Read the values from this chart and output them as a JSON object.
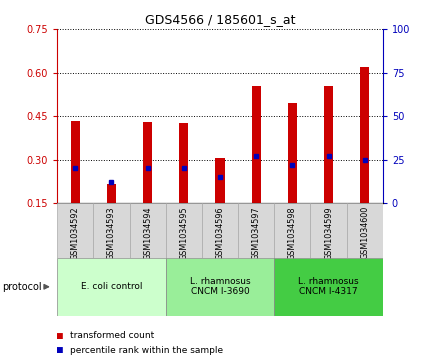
{
  "title": "GDS4566 / 185601_s_at",
  "samples": [
    "GSM1034592",
    "GSM1034593",
    "GSM1034594",
    "GSM1034595",
    "GSM1034596",
    "GSM1034597",
    "GSM1034598",
    "GSM1034599",
    "GSM1034600"
  ],
  "transformed_count": [
    0.435,
    0.215,
    0.43,
    0.425,
    0.305,
    0.555,
    0.495,
    0.555,
    0.62
  ],
  "percentile_rank": [
    20,
    12,
    20,
    20,
    15,
    27,
    22,
    27,
    25
  ],
  "bar_bottom": 0.15,
  "ylim_left": [
    0.15,
    0.75
  ],
  "ylim_right": [
    0,
    100
  ],
  "yticks_left": [
    0.15,
    0.3,
    0.45,
    0.6,
    0.75
  ],
  "yticks_right": [
    0,
    25,
    50,
    75,
    100
  ],
  "bar_color": "#cc0000",
  "blue_color": "#0000bb",
  "protocols": [
    {
      "label": "E. coli control",
      "start": 0,
      "end": 3,
      "color": "#ccffcc"
    },
    {
      "label": "L. rhamnosus\nCNCM I-3690",
      "start": 3,
      "end": 6,
      "color": "#99ee99"
    },
    {
      "label": "L. rhamnosus\nCNCM I-4317",
      "start": 6,
      "end": 9,
      "color": "#44cc44"
    }
  ],
  "bar_width": 0.25,
  "blue_marker_size": 3.5,
  "sample_cell_color": "#d8d8d8",
  "bg_color": "#ffffff"
}
